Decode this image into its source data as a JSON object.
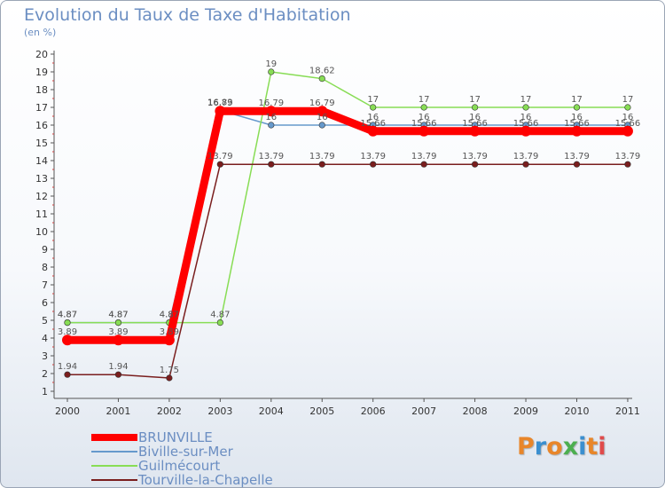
{
  "header": {
    "title": "Evolution du Taux de Taxe d'Habitation",
    "unit": "(en %)"
  },
  "brand": {
    "text": "Proxiti",
    "colors": [
      "#e8862a",
      "#3a8fd0",
      "#e8862a",
      "#4caf50",
      "#3a8fd0",
      "#e8862a",
      "#e04b4b"
    ]
  },
  "chart_data": {
    "type": "line",
    "title": "Evolution du Taux de Taxe d'Habitation",
    "ylabel": "(en %)",
    "xlabel": "",
    "ylim": [
      1,
      20
    ],
    "yticks": [
      1,
      2,
      3,
      4,
      5,
      6,
      7,
      8,
      9,
      10,
      11,
      12,
      13,
      14,
      15,
      16,
      17,
      18,
      19,
      20
    ],
    "grid": false,
    "legend_position": "bottom-left",
    "categories": [
      "2000",
      "2001",
      "2002",
      "2003",
      "2004",
      "2005",
      "2006",
      "2007",
      "2008",
      "2009",
      "2010",
      "2011"
    ],
    "series": [
      {
        "name": "BRUNVILLE",
        "color": "#ff0000",
        "values": [
          3.89,
          3.89,
          3.89,
          16.79,
          16.79,
          16.79,
          15.66,
          15.66,
          15.66,
          15.66,
          15.66,
          15.66
        ],
        "labels": [
          "3.89",
          "3.89",
          "3.89",
          "16.79",
          "16.79",
          "16.79",
          "15.66",
          "15.66",
          "15.66",
          "15.66",
          "15.66",
          "15.66"
        ]
      },
      {
        "name": "Biville-sur-Mer",
        "color": "#6699cc",
        "values": [
          4.87,
          4.87,
          4.87,
          16.83,
          16,
          16,
          16,
          16,
          16,
          16,
          16,
          16
        ],
        "labels": [
          "4.87",
          "4.87",
          "4.87",
          "16.83",
          "16",
          "16",
          "16",
          "16",
          "16",
          "16",
          "16",
          "16"
        ]
      },
      {
        "name": "Guilmécourt",
        "color": "#88dd55",
        "values": [
          4.87,
          4.87,
          4.87,
          4.87,
          19,
          18.62,
          17,
          17,
          17,
          17,
          17,
          17
        ],
        "labels": [
          "4.87",
          "4.87",
          "4.87",
          "4.87",
          "19",
          "18.62",
          "17",
          "17",
          "17",
          "17",
          "17",
          "17"
        ]
      },
      {
        "name": "Tourville-la-Chapelle",
        "color": "#7a1e1e",
        "values": [
          1.94,
          1.94,
          1.75,
          13.79,
          13.79,
          13.79,
          13.79,
          13.79,
          13.79,
          13.79,
          13.79,
          13.79
        ],
        "labels": [
          "1.94",
          "1.94",
          "1.75",
          "13.79",
          "13.79",
          "13.79",
          "13.79",
          "13.79",
          "13.79",
          "13.79",
          "13.79",
          "13.79"
        ]
      }
    ]
  }
}
